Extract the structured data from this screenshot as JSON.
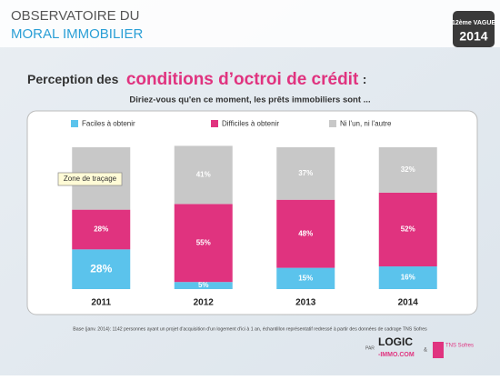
{
  "header": {
    "title_line1": "OBSERVATOIRE DU",
    "title_line2": "MORAL IMMOBILIER",
    "badge_line1": "12ème VAGUE",
    "badge_line2": "2014"
  },
  "slide_title": {
    "prefix": "Perception des",
    "highlight": "conditions d’octroi de crédit",
    "suffix": ":"
  },
  "chart_data": {
    "type": "stacked-bar",
    "subtitle": "Diriez-vous qu'en ce moment, les prêts immobiliers sont ...",
    "categories": [
      "2011",
      "2012",
      "2013",
      "2014"
    ],
    "ylim": [
      0,
      100
    ],
    "series": [
      {
        "name": "Faciles à obtenir",
        "color": "#5bc3ec",
        "values": [
          28,
          5,
          15,
          16
        ],
        "value_labels": [
          "28%",
          "5%",
          "15%",
          "16%"
        ]
      },
      {
        "name": "Difficiles à obtenir",
        "color": "#e0337f",
        "values": [
          28,
          55,
          48,
          52
        ],
        "value_labels": [
          "28%",
          "55%",
          "48%",
          "52%"
        ]
      },
      {
        "name": "Ni l'un, ni l'autre",
        "color": "#c8c8c8",
        "values": [
          44,
          41,
          37,
          32
        ],
        "value_labels": [
          null,
          "41%",
          "37%",
          "32%"
        ]
      }
    ],
    "annotation": "Zone de traçage"
  },
  "footer": {
    "note": "Base (janv. 2014): 1142 personnes ayant un projet d'acquisition d'un logement d'ici à 1 an, échantillon représentatif redressé à partir des données de cadrage TNS Sofres",
    "par": "PAR",
    "logo1a": "LOGIC",
    "logo1b": "-IMMO.COM",
    "amp": "&",
    "logo2": "TNS Sofres"
  }
}
